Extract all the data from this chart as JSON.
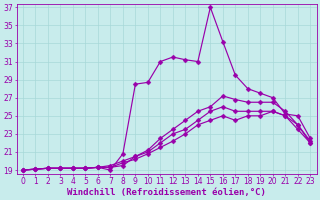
{
  "xlabel": "Windchill (Refroidissement éolien,°C)",
  "bg_color": "#c8ecec",
  "grid_color": "#a8d8d8",
  "line_color": "#9900aa",
  "markersize": 2.5,
  "xmin": 0,
  "xmax": 23,
  "ymin": 19,
  "ymax": 37,
  "yticks": [
    19,
    21,
    23,
    25,
    27,
    29,
    31,
    33,
    35,
    37
  ],
  "xticks": [
    0,
    1,
    2,
    3,
    4,
    5,
    6,
    7,
    8,
    9,
    10,
    11,
    12,
    13,
    14,
    15,
    16,
    17,
    18,
    19,
    20,
    21,
    22,
    23
  ],
  "line1_y": [
    19.0,
    19.1,
    19.2,
    19.2,
    19.2,
    19.2,
    19.3,
    19.0,
    20.8,
    28.5,
    28.7,
    31.0,
    31.5,
    31.2,
    31.0,
    37.0,
    33.2,
    29.5,
    28.0,
    27.5,
    27.0,
    25.2,
    25.0,
    22.5
  ],
  "line2_y": [
    19.0,
    19.1,
    19.2,
    19.2,
    19.2,
    19.2,
    19.3,
    19.3,
    19.5,
    20.5,
    21.2,
    22.5,
    23.5,
    24.5,
    25.5,
    26.0,
    27.2,
    26.8,
    26.5,
    26.5,
    26.5,
    25.5,
    24.0,
    22.0
  ],
  "line3_y": [
    19.0,
    19.1,
    19.2,
    19.2,
    19.2,
    19.2,
    19.3,
    19.5,
    20.0,
    20.5,
    21.0,
    22.0,
    23.0,
    23.5,
    24.5,
    25.5,
    26.0,
    25.5,
    25.5,
    25.5,
    25.5,
    25.0,
    24.0,
    22.2
  ],
  "line4_y": [
    19.0,
    19.1,
    19.2,
    19.2,
    19.2,
    19.2,
    19.3,
    19.3,
    19.8,
    20.2,
    20.8,
    21.5,
    22.2,
    23.0,
    24.0,
    24.5,
    25.0,
    24.5,
    25.0,
    25.0,
    25.5,
    25.0,
    23.5,
    22.0
  ],
  "tick_fontsize": 5.5,
  "label_fontsize": 6.5
}
